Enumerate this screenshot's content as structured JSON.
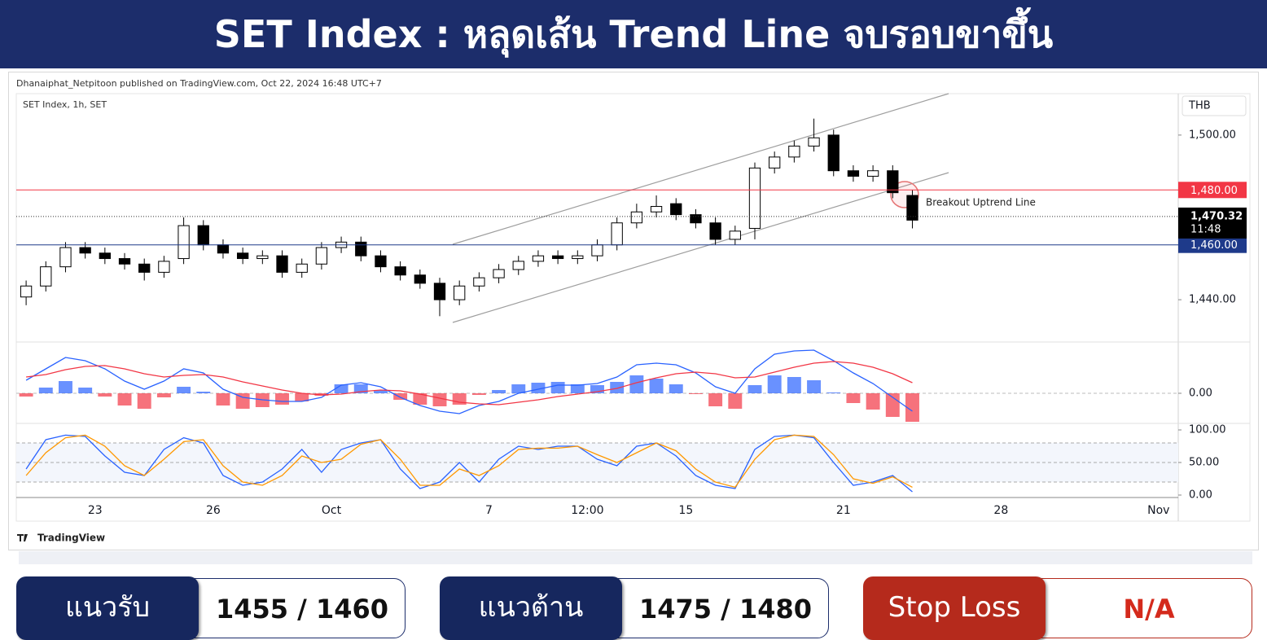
{
  "header": {
    "title": "SET Index : หลุดเส้น Trend Line จบรอบขาขึ้น"
  },
  "attribution": "Dhanaiphat_Netpitoon published on TradingView.com, Oct 22, 2024 16:48 UTC+7",
  "symbol": "SET Index, 1h, SET",
  "currency": "THB",
  "logo": "TradingView",
  "chart_data": [
    {
      "type": "candlestick",
      "categories": [
        null,
        null,
        null,
        null,
        "23",
        null,
        null,
        null,
        null,
        null,
        "26",
        null,
        null,
        null,
        null,
        null,
        "Oct",
        null,
        null,
        null,
        null,
        null,
        null,
        null,
        "7",
        null,
        null,
        null,
        null,
        "12:00",
        null,
        null,
        null,
        null,
        "15",
        null,
        null,
        null,
        null,
        null,
        null,
        null,
        "21",
        null,
        null,
        null,
        null,
        null,
        null,
        null,
        "28",
        null,
        null,
        null,
        null,
        null,
        null,
        null,
        "Nov"
      ],
      "open": [
        1441,
        1445,
        1452,
        1459,
        1457,
        1455,
        1453,
        1450,
        1455,
        1467,
        1460,
        1457,
        1455,
        1456,
        1450,
        1453,
        1459,
        1461,
        1456,
        1452,
        1449,
        1446,
        1440,
        1445,
        1448,
        1451,
        1454,
        1456,
        1455,
        1456,
        1460,
        1468,
        1472,
        1475,
        1471,
        1468,
        1462,
        1466,
        1488,
        1492,
        1496,
        1500,
        1487,
        1485,
        1487,
        1478,
        null,
        null,
        null,
        null,
        null,
        null,
        null,
        null,
        null,
        null,
        null,
        null,
        null
      ],
      "high": [
        1447,
        1454,
        1461,
        1461,
        1459,
        1457,
        1455,
        1456,
        1470,
        1469,
        1462,
        1459,
        1458,
        1458,
        1455,
        1461,
        1463,
        1463,
        1458,
        1454,
        1451,
        1448,
        1447,
        1450,
        1453,
        1456,
        1458,
        1458,
        1458,
        1462,
        1470,
        1475,
        1478,
        1477,
        1473,
        1470,
        1467,
        1490,
        1494,
        1498,
        1506,
        1502,
        1489,
        1489,
        1489,
        1480,
        null,
        null,
        null,
        null,
        null,
        null,
        null,
        null,
        null,
        null,
        null,
        null,
        null
      ],
      "low": [
        1438,
        1443,
        1450,
        1455,
        1453,
        1451,
        1447,
        1448,
        1453,
        1458,
        1455,
        1453,
        1453,
        1448,
        1448,
        1451,
        1457,
        1454,
        1450,
        1447,
        1444,
        1434,
        1438,
        1443,
        1446,
        1449,
        1452,
        1453,
        1453,
        1454,
        1458,
        1466,
        1470,
        1469,
        1466,
        1460,
        1460,
        1462,
        1486,
        1490,
        1494,
        1485,
        1483,
        1483,
        1477,
        1466,
        null,
        null,
        null,
        null,
        null,
        null,
        null,
        null,
        null,
        null,
        null,
        null,
        null
      ],
      "close": [
        1445,
        1452,
        1459,
        1457,
        1455,
        1453,
        1450,
        1454,
        1467,
        1460,
        1457,
        1455,
        1456,
        1450,
        1453,
        1459,
        1461,
        1456,
        1452,
        1449,
        1446,
        1440,
        1445,
        1448,
        1451,
        1454,
        1456,
        1455,
        1456,
        1460,
        1468,
        1472,
        1474,
        1471,
        1468,
        1462,
        1465,
        1488,
        1492,
        1496,
        1499,
        1487,
        1485,
        1487,
        1479,
        1469,
        null,
        null,
        null,
        null,
        null,
        null,
        null,
        null,
        null,
        null,
        null,
        null,
        null
      ],
      "up_color": "#ffffff",
      "down_color": "#000000",
      "ylim": [
        1424.6,
        1515.1
      ],
      "yticks": [
        {
          "value": 1440,
          "label": "1,440.00"
        },
        {
          "value": 1500,
          "label": "1,500.00"
        }
      ],
      "levels": [
        {
          "value": 1480,
          "label": "1,480.00",
          "color": "#f23645"
        },
        {
          "value": 1460,
          "label": "1,460.00",
          "color": "#1e3a8a"
        }
      ],
      "last": {
        "value": 1470.32,
        "label": "1,470.32",
        "time": "11:48"
      },
      "annotation": "Breakout Uptrend Line"
    },
    {
      "type": "macd",
      "series": [
        {
          "color": "#2962ff",
          "values": [
            1.6,
            3.0,
            4.4,
            4.0,
            3.0,
            1.5,
            0.5,
            1.5,
            3.0,
            2.5,
            0.5,
            -0.5,
            -0.8,
            -1.0,
            -1.0,
            -0.5,
            1.0,
            1.3,
            0.8,
            -0.5,
            -1.5,
            -2.2,
            -2.5,
            -1.5,
            -1.0,
            0.0,
            0.5,
            1.0,
            1.0,
            1.2,
            2.0,
            3.5,
            3.7,
            3.5,
            2.5,
            0.8,
            0.0,
            3.0,
            4.8,
            5.2,
            5.3,
            4.0,
            2.5,
            1.2,
            -0.5,
            -2.2,
            null,
            null,
            null,
            null,
            null,
            null,
            null,
            null,
            null,
            null,
            null,
            null,
            null
          ]
        },
        {
          "color": "#f23645",
          "values": [
            2.0,
            2.3,
            2.9,
            3.3,
            3.4,
            3.0,
            2.4,
            2.0,
            2.2,
            2.3,
            2.0,
            1.4,
            0.9,
            0.4,
            0.0,
            -0.2,
            -0.1,
            0.2,
            0.4,
            0.3,
            -0.1,
            -0.6,
            -1.1,
            -1.3,
            -1.4,
            -1.1,
            -0.8,
            -0.4,
            -0.1,
            0.2,
            0.6,
            1.3,
            1.9,
            2.4,
            2.6,
            2.4,
            1.9,
            2.0,
            2.6,
            3.2,
            3.7,
            3.9,
            3.7,
            3.2,
            2.4,
            1.3,
            null,
            null,
            null,
            null,
            null,
            null,
            null,
            null,
            null,
            null,
            null,
            null,
            null
          ]
        }
      ],
      "histogram": {
        "up_color": "#2962ff",
        "down_color": "#f23645",
        "values": [
          -0.4,
          0.7,
          1.5,
          0.7,
          -0.4,
          -1.5,
          -1.9,
          -0.5,
          0.8,
          0.2,
          -1.5,
          -1.9,
          -1.7,
          -1.4,
          -1.0,
          -0.3,
          1.1,
          1.1,
          0.4,
          -0.8,
          -1.4,
          -1.6,
          -1.4,
          -0.2,
          0.4,
          1.1,
          1.3,
          1.4,
          1.1,
          1.0,
          1.4,
          2.2,
          1.8,
          1.1,
          -0.1,
          -1.6,
          -1.9,
          1.0,
          2.2,
          2.0,
          1.6,
          0.1,
          -1.2,
          -2.0,
          -2.9,
          -3.5,
          null,
          null,
          null,
          null,
          null,
          null,
          null,
          null,
          null,
          null,
          null,
          null,
          null
        ]
      },
      "ylim": [
        -3.7,
        6.3
      ],
      "yticks": [
        {
          "value": 0,
          "label": "0.00"
        }
      ],
      "grid": true
    },
    {
      "type": "stochastic",
      "series": [
        {
          "color": "#2962ff",
          "values": [
            40,
            85,
            92,
            90,
            60,
            35,
            30,
            70,
            88,
            80,
            30,
            15,
            20,
            40,
            70,
            35,
            70,
            80,
            85,
            40,
            10,
            20,
            50,
            20,
            55,
            75,
            70,
            75,
            75,
            55,
            45,
            75,
            80,
            60,
            30,
            15,
            10,
            70,
            90,
            92,
            88,
            50,
            15,
            20,
            30,
            5,
            null,
            null,
            null,
            null,
            null,
            null,
            null,
            null,
            null,
            null,
            null,
            null,
            null
          ]
        },
        {
          "color": "#ff9800",
          "values": [
            30,
            65,
            88,
            92,
            75,
            45,
            30,
            55,
            82,
            85,
            45,
            20,
            15,
            30,
            60,
            50,
            55,
            78,
            85,
            55,
            15,
            15,
            40,
            30,
            45,
            70,
            72,
            72,
            75,
            62,
            50,
            65,
            80,
            68,
            40,
            20,
            12,
            55,
            85,
            92,
            90,
            62,
            25,
            18,
            28,
            12,
            null,
            null,
            null,
            null,
            null,
            null,
            null,
            null,
            null,
            null,
            null,
            null,
            null
          ]
        }
      ],
      "ylim": [
        -8.75,
        110
      ],
      "yticks": [
        {
          "value": 100,
          "label": "100.00"
        },
        {
          "value": 50,
          "label": "50.00"
        },
        {
          "value": 0,
          "label": "0.00"
        }
      ],
      "levels": [
        80,
        50,
        20
      ]
    }
  ],
  "panels": [
    {
      "label": "แนวรับ",
      "value": "1455 / 1460"
    },
    {
      "label": "แนวต้าน",
      "value": "1475 / 1480"
    },
    {
      "label": "Stop Loss",
      "value": "N/A"
    }
  ]
}
